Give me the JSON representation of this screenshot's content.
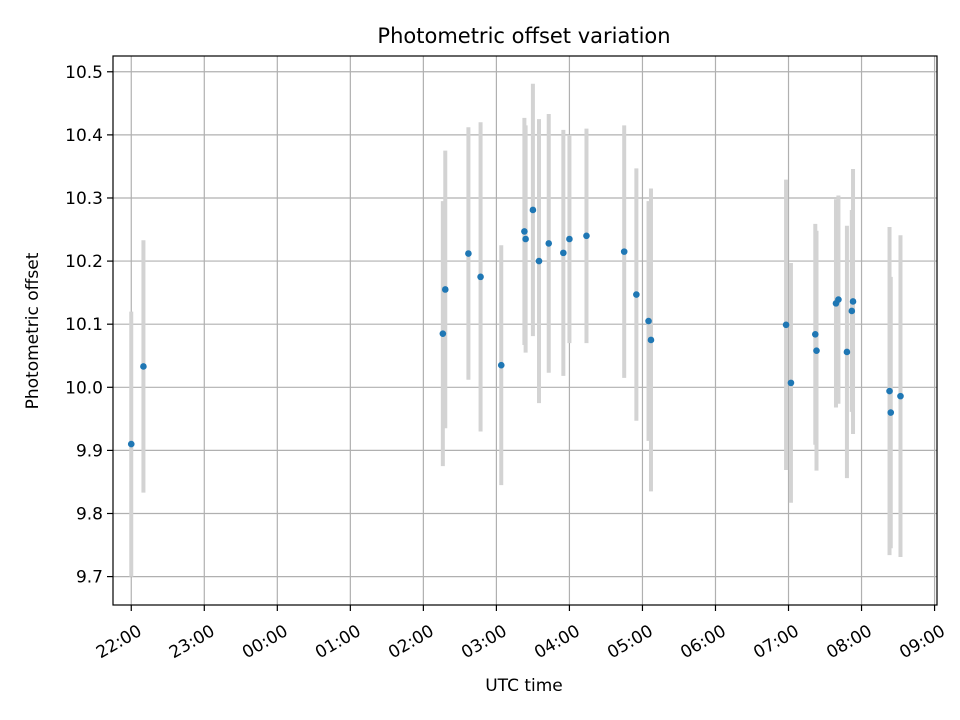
{
  "chart_data": {
    "type": "scatter",
    "title": "Photometric offset variation",
    "xlabel": "UTC time",
    "ylabel": "Photometric offset",
    "grid": true,
    "xlim": [
      "21:45",
      "09:02"
    ],
    "ylim": [
      9.655,
      10.525
    ],
    "x_ticks": [
      "22:00",
      "23:00",
      "00:00",
      "01:00",
      "02:00",
      "03:00",
      "04:00",
      "05:00",
      "06:00",
      "07:00",
      "08:00",
      "09:00"
    ],
    "y_ticks": [
      "9.7",
      "9.8",
      "9.9",
      "10.0",
      "10.1",
      "10.2",
      "10.3",
      "10.4",
      "10.5"
    ],
    "colors": {
      "points": "#1f77b4",
      "error_bars": "#d3d3d3",
      "grid": "#b0b0b0"
    },
    "series": [
      {
        "points": [
          {
            "x": "22:00",
            "y": 9.91,
            "err": 0.21
          },
          {
            "x": "22:10",
            "y": 10.033,
            "err": 0.2
          },
          {
            "x": "02:16",
            "y": 10.085,
            "err": 0.21
          },
          {
            "x": "02:18",
            "y": 10.155,
            "err": 0.22
          },
          {
            "x": "02:37",
            "y": 10.212,
            "err": 0.2
          },
          {
            "x": "02:47",
            "y": 10.175,
            "err": 0.245
          },
          {
            "x": "03:04",
            "y": 10.035,
            "err": 0.19
          },
          {
            "x": "03:23",
            "y": 10.247,
            "err": 0.18
          },
          {
            "x": "03:24",
            "y": 10.235,
            "err": 0.18
          },
          {
            "x": "03:30",
            "y": 10.281,
            "err": 0.2
          },
          {
            "x": "03:35",
            "y": 10.2,
            "err": 0.225
          },
          {
            "x": "03:43",
            "y": 10.228,
            "err": 0.205
          },
          {
            "x": "03:55",
            "y": 10.213,
            "err": 0.195
          },
          {
            "x": "04:00",
            "y": 10.235,
            "err": 0.165
          },
          {
            "x": "04:14",
            "y": 10.24,
            "err": 0.17
          },
          {
            "x": "04:45",
            "y": 10.215,
            "err": 0.2
          },
          {
            "x": "04:55",
            "y": 10.147,
            "err": 0.2
          },
          {
            "x": "05:05",
            "y": 10.105,
            "err": 0.19
          },
          {
            "x": "05:07",
            "y": 10.075,
            "err": 0.24
          },
          {
            "x": "06:58",
            "y": 10.099,
            "err": 0.23
          },
          {
            "x": "07:02",
            "y": 10.007,
            "err": 0.19
          },
          {
            "x": "07:22",
            "y": 10.084,
            "err": 0.175
          },
          {
            "x": "07:23",
            "y": 10.058,
            "err": 0.19
          },
          {
            "x": "07:39",
            "y": 10.133,
            "err": 0.165
          },
          {
            "x": "07:41",
            "y": 10.139,
            "err": 0.165
          },
          {
            "x": "07:48",
            "y": 10.056,
            "err": 0.2
          },
          {
            "x": "07:52",
            "y": 10.121,
            "err": 0.16
          },
          {
            "x": "07:53",
            "y": 10.136,
            "err": 0.21
          },
          {
            "x": "08:23",
            "y": 9.994,
            "err": 0.26
          },
          {
            "x": "08:24",
            "y": 9.96,
            "err": 0.215
          },
          {
            "x": "08:32",
            "y": 9.986,
            "err": 0.255
          }
        ]
      }
    ]
  }
}
